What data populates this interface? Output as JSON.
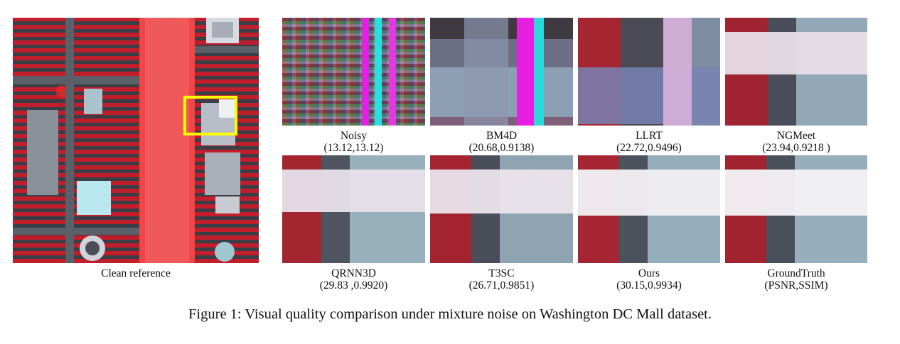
{
  "figure": {
    "caption": "Figure 1: Visual quality comparison under mixture noise on Washington DC Mall dataset.",
    "clean_label": "Clean reference",
    "panels": [
      {
        "name": "Noisy",
        "metric": "(13.12,13.12)"
      },
      {
        "name": "BM4D",
        "metric": "(20.68,0.9138)"
      },
      {
        "name": "LLRT",
        "metric": "(22.72,0.9496)"
      },
      {
        "name": "NGMeet",
        "metric": "(23.94,0.9218 )"
      },
      {
        "name": "QRNN3D",
        "metric": "(29.83 ,0.9920)"
      },
      {
        "name": "T3SC",
        "metric": "(26.71,0.9851)"
      },
      {
        "name": "Ours",
        "metric": "(30.15,0.9934)"
      },
      {
        "name": "GroundTruth",
        "metric": "(PSNR,SSIM)"
      }
    ],
    "highlight_color": "#ffff00"
  }
}
